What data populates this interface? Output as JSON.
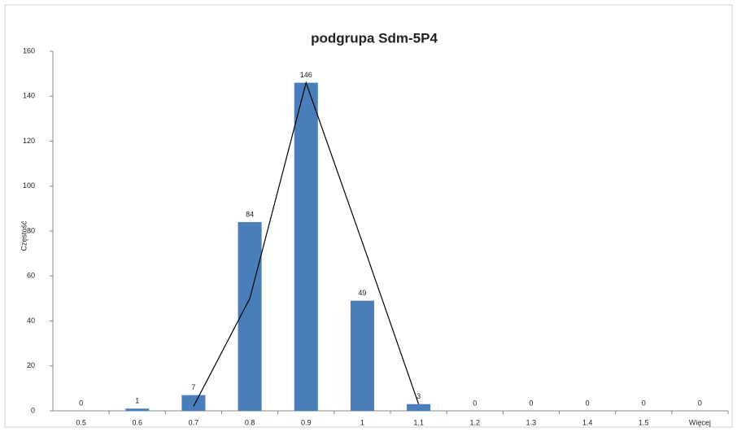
{
  "chart_data": {
    "type": "bar",
    "title": "podgrupa Sdm-5P4",
    "ylabel": "Częstość",
    "categories": [
      "0.5",
      "0.6",
      "0.7",
      "0.8",
      "0.9",
      "1",
      "1.1",
      "1.2",
      "1.3",
      "1.4",
      "1.5",
      "Więcej"
    ],
    "series": [
      {
        "type": "bar",
        "color": "#4a7ebb",
        "values": [
          0,
          1,
          7,
          84,
          146,
          49,
          3,
          0,
          0,
          0,
          0,
          0
        ]
      },
      {
        "type": "line",
        "color": "#000000",
        "values": [
          null,
          null,
          2,
          50,
          146,
          75,
          3,
          null,
          null,
          null,
          null,
          null
        ]
      }
    ],
    "ylim": [
      0,
      160
    ],
    "yticks": [
      0,
      20,
      40,
      60,
      80,
      100,
      120,
      140,
      160
    ],
    "grid": false
  }
}
